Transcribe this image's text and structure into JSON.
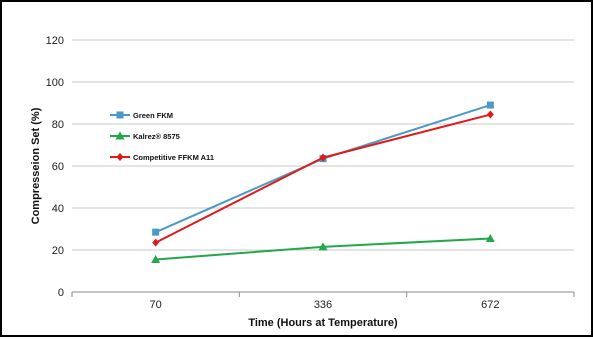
{
  "chart_data": {
    "type": "line",
    "categories": [
      "70",
      "336",
      "672"
    ],
    "series": [
      {
        "name": "Green FKM",
        "values": [
          28.5,
          63.5,
          89
        ],
        "color": "#4a9ac4",
        "marker": "square"
      },
      {
        "name": "Kalrez® 8575",
        "values": [
          15.5,
          21.5,
          25.5
        ],
        "color": "#22a84a",
        "marker": "triangle"
      },
      {
        "name": "Competitive FFKM A11",
        "values": [
          23.5,
          64,
          84.5
        ],
        "color": "#e01a1a",
        "marker": "diamond"
      }
    ],
    "xlabel": "Time (Hours at Temperature)",
    "ylabel": "Compresseion Set (%)",
    "ylim": [
      0,
      120
    ],
    "yticks": [
      0,
      20,
      40,
      60,
      80,
      100,
      120
    ],
    "grid": true,
    "legend_position": "left"
  }
}
